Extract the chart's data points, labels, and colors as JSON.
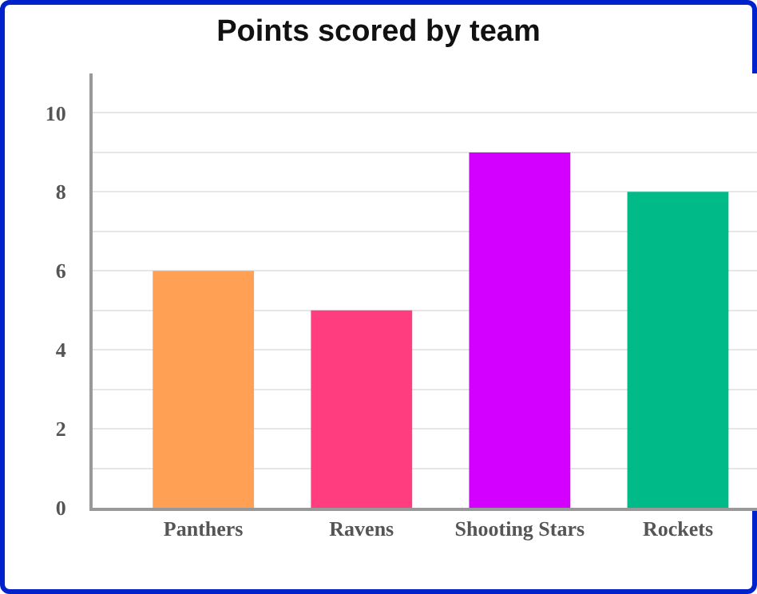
{
  "chart_data": {
    "type": "bar",
    "title": "Points scored by team",
    "categories": [
      "Panthers",
      "Ravens",
      "Shooting Stars",
      "Rockets"
    ],
    "values": [
      6,
      5,
      9,
      8
    ],
    "colors": [
      "#ffa055",
      "#ff3d7f",
      "#d400ff",
      "#00bb88"
    ],
    "ylim": [
      0,
      11
    ],
    "yticks": [
      0,
      {
        "value": 1,
        "label": null
      },
      2,
      {
        "value": 3,
        "label": null
      },
      4,
      {
        "value": 5,
        "label": null
      },
      6,
      {
        "value": 7,
        "label": null
      },
      8,
      {
        "value": 9,
        "label": null
      },
      10
    ],
    "grid": "y"
  }
}
